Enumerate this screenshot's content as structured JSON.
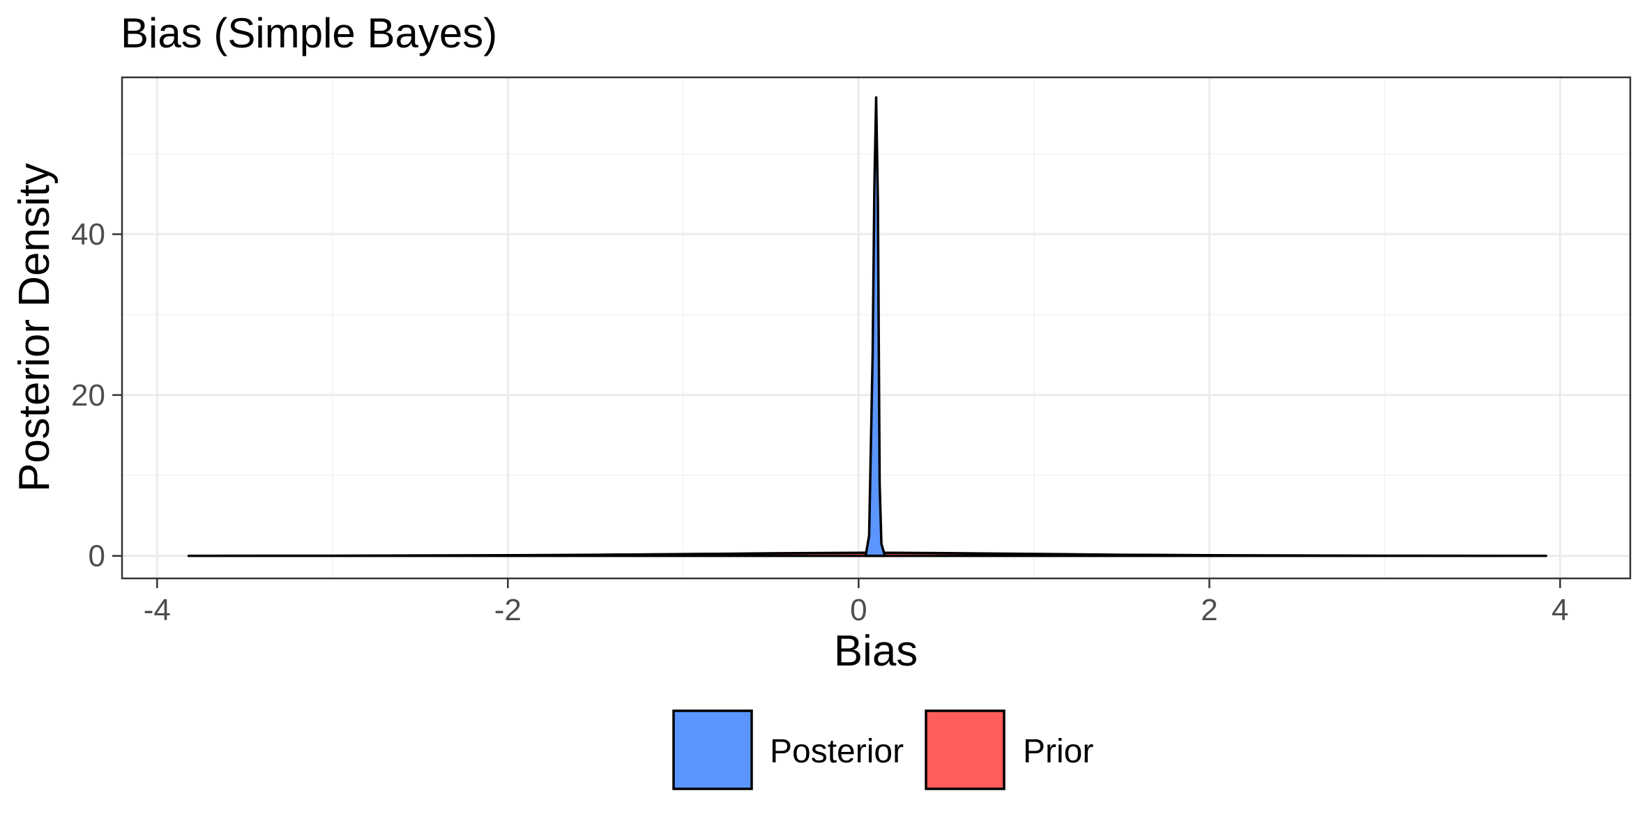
{
  "chart_data": {
    "type": "area",
    "title": "Bias (Simple Bayes)",
    "xlabel": "Bias",
    "ylabel": "Posterior Density",
    "xlim": [
      -4.2,
      4.4
    ],
    "ylim": [
      -2.8,
      59.5
    ],
    "x_ticks": [
      -4,
      -2,
      0,
      2,
      4
    ],
    "x_tick_labels": [
      "-4",
      "-2",
      "0",
      "2",
      "4"
    ],
    "y_ticks": [
      0,
      20,
      40
    ],
    "y_tick_labels": [
      "0",
      "20",
      "40"
    ],
    "grid": true,
    "legend_position": "bottom",
    "series": [
      {
        "name": "Prior",
        "color": "#F8766D",
        "fill": "#ff5c5c",
        "x": [
          -3.82,
          -3.0,
          -2.0,
          -1.5,
          -1.0,
          -0.5,
          0.0,
          0.05,
          0.1,
          0.15,
          0.2,
          0.5,
          1.0,
          1.5,
          2.0,
          3.0,
          3.92
        ],
        "y": [
          0.0,
          0.02,
          0.08,
          0.14,
          0.22,
          0.32,
          0.38,
          0.39,
          0.39,
          0.39,
          0.38,
          0.34,
          0.24,
          0.14,
          0.08,
          0.02,
          0.0
        ]
      },
      {
        "name": "Posterior",
        "color": "#619CFF",
        "fill": "#5b96ff",
        "x": [
          0.04,
          0.06,
          0.08,
          0.09,
          0.1,
          0.11,
          0.12,
          0.13,
          0.15
        ],
        "y": [
          0.0,
          2.5,
          25.0,
          46.0,
          57.0,
          44.0,
          9.0,
          1.5,
          0.0
        ]
      }
    ]
  }
}
